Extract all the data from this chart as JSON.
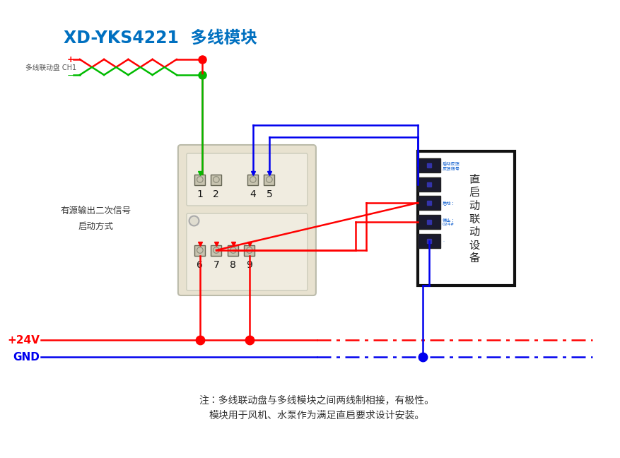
{
  "title": "XD-YKS4221  多线模块",
  "title_color": "#0070C0",
  "bg_color": "#ffffff",
  "label_multiline": "多线联动盘 CH1",
  "label_active": "有源输出二次信号\n启动方式",
  "label_24v": "+24V",
  "label_gnd": "GND",
  "note_line1": "注：多线联动盘与多线模块之间两线制相接，有极性。",
  "note_line2": "模块用于风机、水泵作为满足直启要求设计安装。",
  "red": "#FF0000",
  "green": "#00BB00",
  "blue": "#0000EE",
  "dark": "#222222",
  "mod_face": "#E8E2D0",
  "mod_edge": "#AAAAAA",
  "dev_face": "#ffffff",
  "dev_edge": "#111111"
}
